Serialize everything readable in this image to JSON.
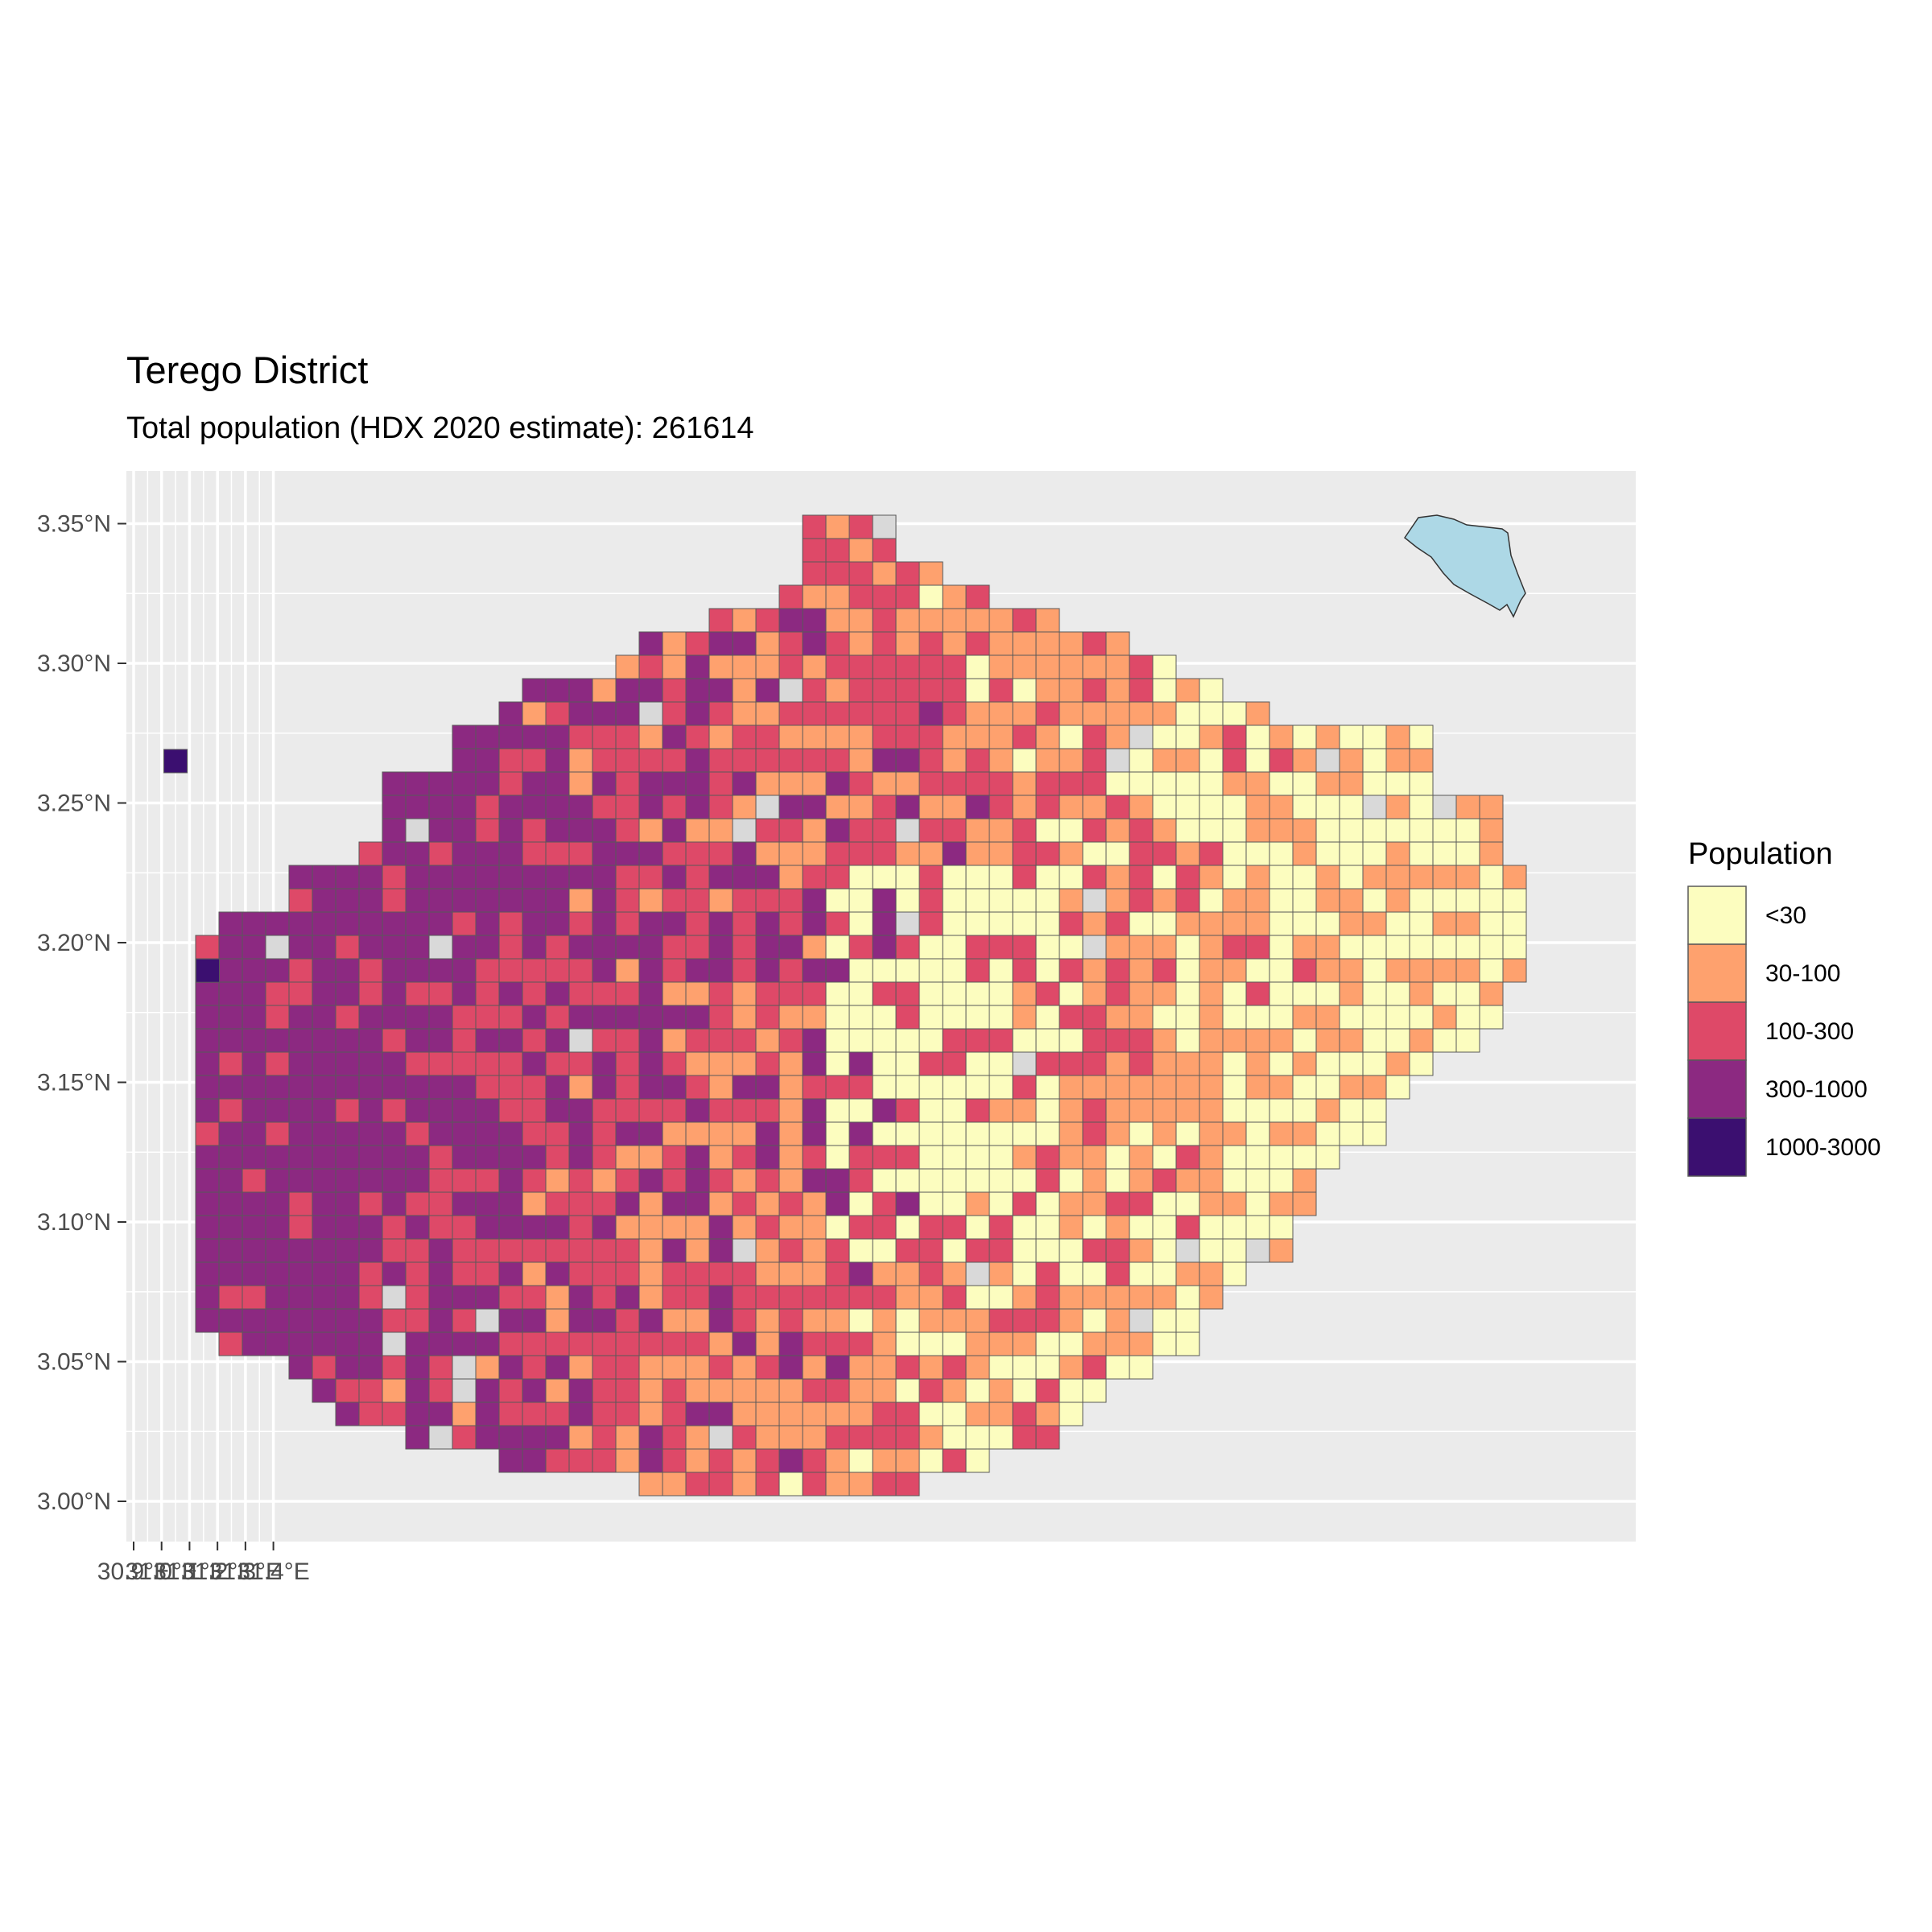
{
  "title": "Terego District",
  "subtitle": "Total population (HDX 2020 estimate): 261614",
  "chart_data": {
    "type": "heatmap",
    "description_axis": "choropleth grid of population per cell",
    "x_axis": {
      "ticks": [
        "30.9°E",
        "31.0°E",
        "31.1°E",
        "31.2°E",
        "31.3°E",
        "31.4°E"
      ],
      "values": [
        30.9,
        31.0,
        31.1,
        31.2,
        31.3,
        31.4
      ],
      "range": [
        30.9,
        31.4
      ]
    },
    "y_axis": {
      "ticks": [
        "3.35°N",
        "3.30°N",
        "3.25°N",
        "3.20°N",
        "3.15°N",
        "3.10°N",
        "3.05°N",
        "3.00°N"
      ],
      "values": [
        3.35,
        3.3,
        3.25,
        3.2,
        3.15,
        3.1,
        3.05,
        3.0
      ],
      "range": [
        3.0,
        3.35
      ]
    },
    "grid": true,
    "legend": {
      "title": "Population",
      "placement": "right",
      "items": [
        {
          "label": "<30",
          "color": "#fcfdbf"
        },
        {
          "label": "30-100",
          "color": "#fea16e"
        },
        {
          "label": "100-300",
          "color": "#de4968"
        },
        {
          "label": "300-1000",
          "color": "#8c2981"
        },
        {
          "label": "1000-3000",
          "color": "#3b0f70"
        }
      ]
    },
    "colors": {
      "panel": "#ebebeb",
      "gridline": "#ffffff",
      "no_data": "#d9d9d9",
      "lake": "#add8e6",
      "cell_border": "#595959"
    },
    "highlight_cells": [
      {
        "lon": 31.05,
        "lat": 3.265,
        "class": "1000-3000"
      },
      {
        "lon": 31.165,
        "lat": 3.19,
        "class": "1000-3000"
      }
    ]
  }
}
